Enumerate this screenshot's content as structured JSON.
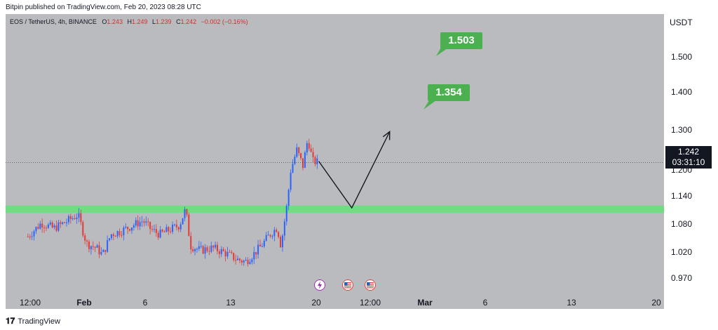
{
  "header": {
    "publisher_text": "Bitpin published on TradingView.com, Feb 20, 2023 08:28 UTC"
  },
  "legend": {
    "symbol": "EOS / TetherUS, 4h, BINANCE",
    "open_label": "O",
    "open": "1.243",
    "high_label": "H",
    "high": "1.249",
    "low_label": "L",
    "low": "1.239",
    "close_label": "C",
    "close": "1.242",
    "change": "−0.002 (−0.16%)"
  },
  "price_axis": {
    "unit": "USDT",
    "ticks": [
      "1.500",
      "1.400",
      "1.300",
      "1.200",
      "1.140",
      "1.080",
      "1.020",
      "0.970"
    ]
  },
  "time_axis": {
    "ticks": [
      "12:00",
      "Feb",
      "6",
      "13",
      "20",
      "12:00",
      "Mar",
      "6",
      "13",
      "20"
    ]
  },
  "last_price": {
    "price": "1.242",
    "countdown": "03:31:10"
  },
  "targets": [
    {
      "label": "1.503"
    },
    {
      "label": "1.354"
    }
  ],
  "footer": {
    "brand": "TradingView"
  },
  "colors": {
    "up": "#2962ff",
    "down": "#e53935",
    "support_zone": "#69e07a",
    "target_bg": "#4caf50",
    "chart_bg": "#b9bbbf"
  },
  "chart_data": {
    "type": "candlestick",
    "symbol": "EOS / TetherUS",
    "timeframe": "4h",
    "exchange": "BINANCE",
    "yunit": "USDT",
    "ylim": [
      0.96,
      1.56
    ],
    "support_zone": [
      1.132,
      1.148
    ],
    "last_price": 1.242,
    "projection_path": [
      {
        "t": "Feb 20",
        "price": 1.245
      },
      {
        "t": "Feb 21",
        "price": 1.143
      },
      {
        "t": "Feb 22",
        "price": 1.31
      }
    ],
    "targets": [
      1.503,
      1.354
    ],
    "anchors": [
      {
        "label": "Feb",
        "price_high": 1.14
      },
      {
        "label": "Feb 13",
        "price_low": 1.005
      },
      {
        "label": "Feb 18",
        "price_high": 1.315
      }
    ]
  }
}
